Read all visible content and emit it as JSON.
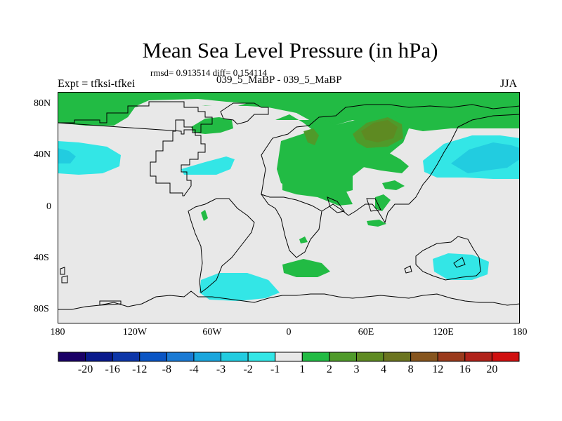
{
  "title": "Mean Sea Level Pressure (in hPa)",
  "stats_text": "rmsd= 0.913514 diff= 0.154114",
  "expt_label": "Expt = tfksi-tfkei",
  "run_label": "039_5_MaBP - 039_5_MaBP",
  "season": "JJA",
  "lat_labels": [
    "80N",
    "40N",
    "0",
    "40S",
    "80S"
  ],
  "lon_labels": [
    "180",
    "120W",
    "60W",
    "0",
    "60E",
    "120E",
    "180"
  ],
  "colorbar": {
    "colors": [
      "#1a0066",
      "#0a1a8c",
      "#0d36a8",
      "#0a55c4",
      "#1a7ad4",
      "#1aa6dd",
      "#22cce0",
      "#33e6e6",
      "#e8e8e8",
      "#22bb44",
      "#4f9a2a",
      "#5e8a22",
      "#6b7420",
      "#86551e",
      "#9a3a1c",
      "#b0221a",
      "#d01010"
    ],
    "labels": [
      "-20",
      "-16",
      "-12",
      "-8",
      "-4",
      "-3",
      "-2",
      "-1",
      "1",
      "2",
      "3",
      "4",
      "8",
      "12",
      "16",
      "20"
    ]
  },
  "fill_colors": {
    "background": "#e8e8e8",
    "light_green": "#22bb44",
    "dark_green": "#4f9a2a",
    "olive": "#5e8a22",
    "cyan": "#33e6e6",
    "mid_cyan": "#22cce0"
  }
}
